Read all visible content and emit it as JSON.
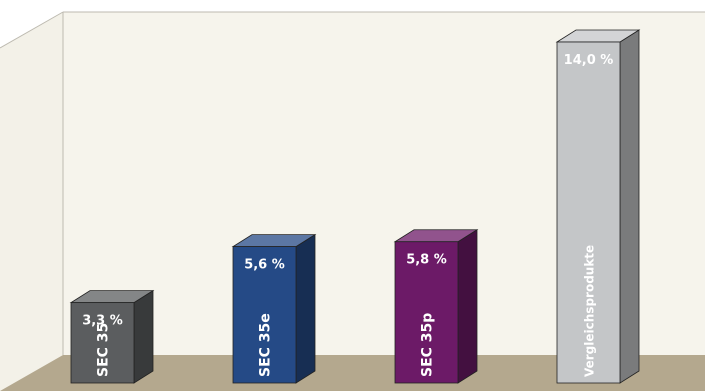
{
  "chart_data": {
    "type": "bar",
    "title": "",
    "xlabel": "",
    "ylabel": "",
    "ylim": [
      0,
      14.0
    ],
    "grid": false,
    "legend": "none",
    "categories": [
      "SEC 35",
      "SEC 35e",
      "SEC 35p",
      "Vergleichsprodukte"
    ],
    "values": [
      3.3,
      5.6,
      5.8,
      14.0
    ],
    "labels": [
      "3,3 %",
      "5,6 %",
      "5,8 %",
      "14,0 %"
    ],
    "colors": [
      "#5b5d5f",
      "#254a86",
      "#6c1a67",
      "#c4c6c8"
    ]
  }
}
